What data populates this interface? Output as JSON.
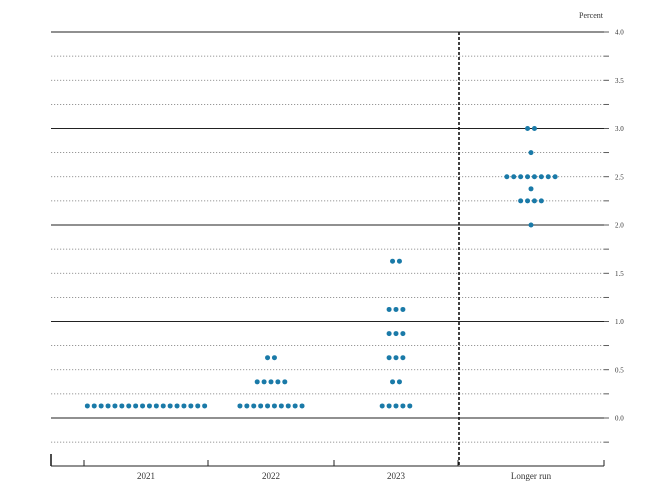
{
  "chart_data": {
    "type": "scatter",
    "ylabel": "Percent",
    "ylim": [
      -0.25,
      4.0
    ],
    "y_ticks": [
      "0.0",
      "0.5",
      "1.0",
      "1.5",
      "2.0",
      "2.5",
      "3.0",
      "3.5",
      "4.0"
    ],
    "categories": [
      "2021",
      "2022",
      "2023",
      "Longer run"
    ],
    "grid": true,
    "dot_color": "#1a7aa8",
    "dots": [
      {
        "category": "2021",
        "value": 0.125,
        "count": 18
      },
      {
        "category": "2022",
        "value": 0.125,
        "count": 10
      },
      {
        "category": "2022",
        "value": 0.375,
        "count": 5
      },
      {
        "category": "2022",
        "value": 0.625,
        "count": 2
      },
      {
        "category": "2023",
        "value": 0.125,
        "count": 5
      },
      {
        "category": "2023",
        "value": 0.375,
        "count": 2
      },
      {
        "category": "2023",
        "value": 0.625,
        "count": 3
      },
      {
        "category": "2023",
        "value": 0.875,
        "count": 3
      },
      {
        "category": "2023",
        "value": 1.125,
        "count": 3
      },
      {
        "category": "2023",
        "value": 1.625,
        "count": 2
      },
      {
        "category": "Longer run",
        "value": 2.0,
        "count": 1
      },
      {
        "category": "Longer run",
        "value": 2.25,
        "count": 4
      },
      {
        "category": "Longer run",
        "value": 2.375,
        "count": 1
      },
      {
        "category": "Longer run",
        "value": 2.5,
        "count": 8
      },
      {
        "category": "Longer run",
        "value": 2.75,
        "count": 1
      },
      {
        "category": "Longer run",
        "value": 3.0,
        "count": 2
      }
    ]
  }
}
